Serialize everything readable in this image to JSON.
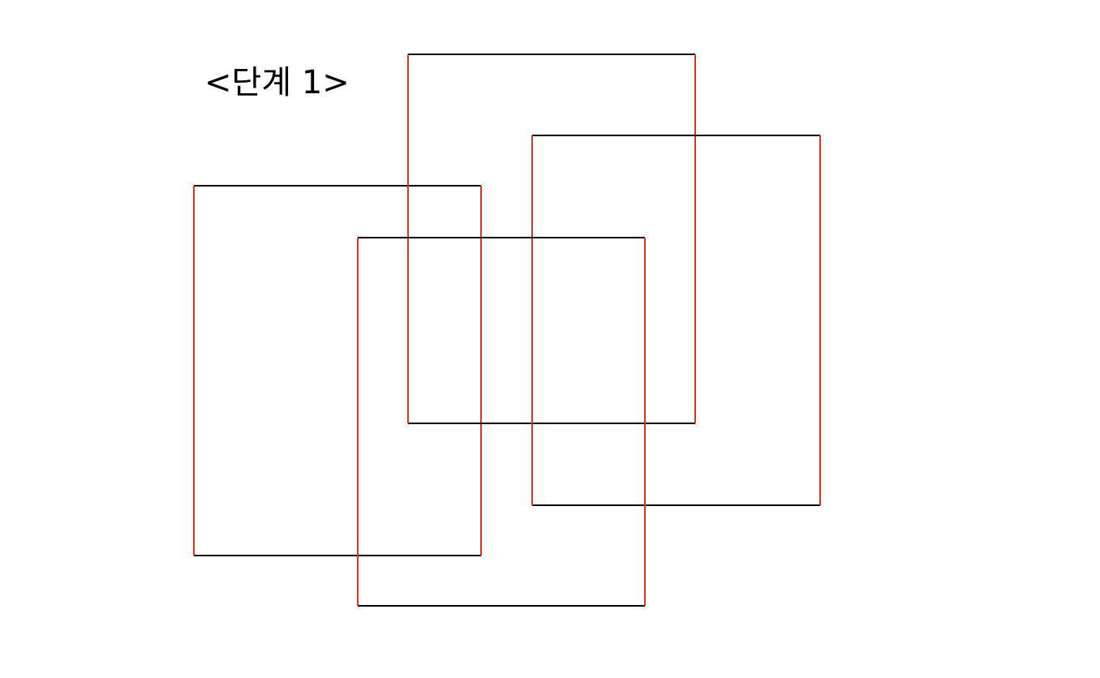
{
  "title": "<단계 1>",
  "colors": {
    "vertical_edges": "#e0301e",
    "horizontal_edges": "#000000",
    "background": "#ffffff"
  },
  "rectangles": [
    {
      "name": "rect-left"
    },
    {
      "name": "rect-top"
    },
    {
      "name": "rect-right"
    },
    {
      "name": "rect-bottom"
    }
  ]
}
